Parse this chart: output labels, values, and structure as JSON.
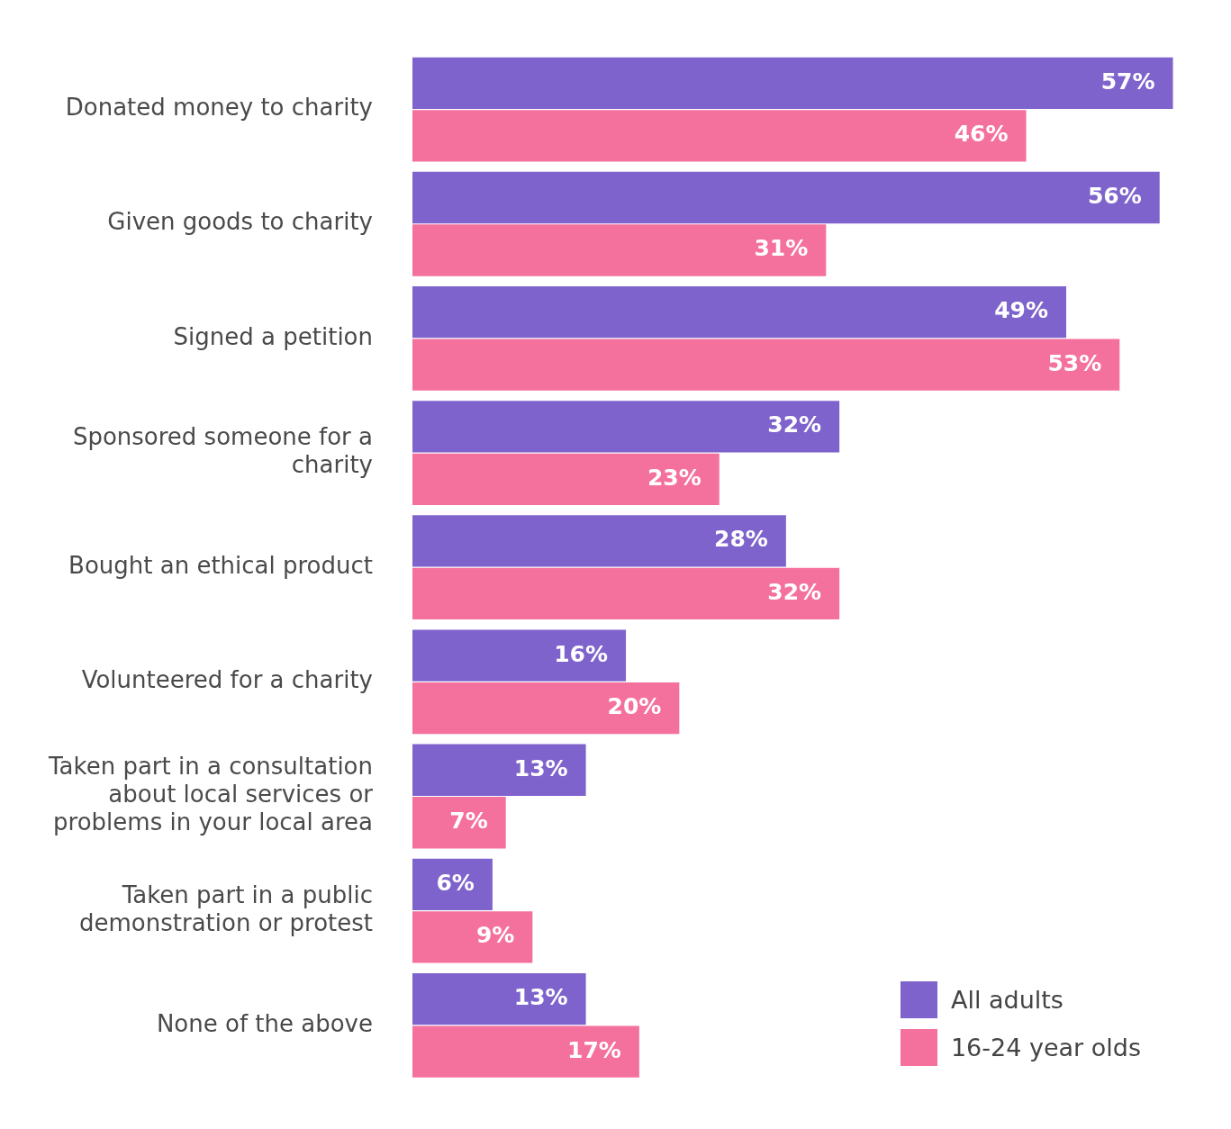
{
  "chart_data": {
    "type": "bar",
    "orientation": "horizontal",
    "legend": "bottom right",
    "categories": [
      "Donated money to charity",
      "Given goods to charity",
      "Signed a petition",
      "Sponsored someone for a charity",
      "Bought an ethical product",
      "Volunteered for a charity",
      "Taken part in a consultation about local services or problems in your local area",
      "Taken part in a public demonstration or protest",
      "None of the above"
    ],
    "series": [
      {
        "name": "All adults",
        "color": "#7f63cc",
        "values": [
          57,
          56,
          49,
          32,
          28,
          16,
          13,
          6,
          13
        ],
        "value_labels": [
          "57%",
          "56%",
          "49%",
          "32%",
          "28%",
          "16%",
          "13%",
          "6%",
          "13%"
        ]
      },
      {
        "name": "16-24 year olds",
        "color": "#f4719e",
        "values": [
          46,
          31,
          53,
          23,
          32,
          20,
          7,
          9,
          17
        ],
        "value_labels": [
          "46%",
          "31%",
          "53%",
          "23%",
          "32%",
          "20%",
          "7%",
          "9%",
          "17%"
        ]
      }
    ]
  }
}
